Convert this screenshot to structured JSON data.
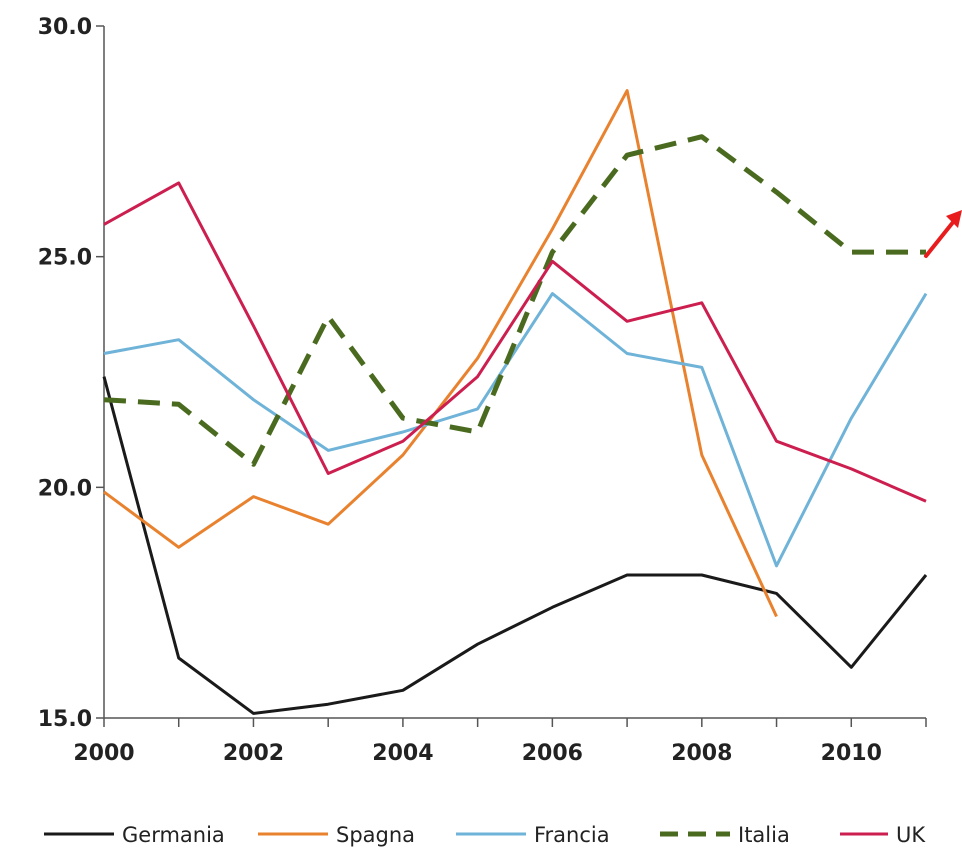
{
  "chart_data": {
    "type": "line",
    "title": "",
    "xlabel": "",
    "ylabel": "",
    "x": [
      2000,
      2001,
      2002,
      2003,
      2004,
      2005,
      2006,
      2007,
      2008,
      2009,
      2010,
      2011
    ],
    "xlim": [
      2000,
      2011
    ],
    "ylim": [
      15.0,
      30.0
    ],
    "x_ticks": [
      2000,
      2002,
      2004,
      2006,
      2008,
      2010
    ],
    "x_tick_labels": [
      "2000",
      "2002",
      "2004",
      "2006",
      "2008",
      "2010"
    ],
    "y_ticks": [
      15,
      20,
      25,
      30
    ],
    "y_tick_labels": [
      "15.0",
      "20.0",
      "25.0",
      "30.0"
    ],
    "grid": false,
    "legend_position": "bottom",
    "series": [
      {
        "name": "Germania",
        "color": "#1a1a1a",
        "dash": "solid",
        "values": [
          22.4,
          16.3,
          15.1,
          15.3,
          15.6,
          16.6,
          17.4,
          18.1,
          18.1,
          17.7,
          16.1,
          18.1
        ]
      },
      {
        "name": "Spagna",
        "color": "#e9822e",
        "dash": "solid",
        "values": [
          19.9,
          18.7,
          19.8,
          19.2,
          20.7,
          22.8,
          25.6,
          28.6,
          20.7,
          17.2,
          null,
          null
        ]
      },
      {
        "name": "Francia",
        "color": "#6fb3d8",
        "dash": "solid",
        "values": [
          22.9,
          23.2,
          21.9,
          20.8,
          21.2,
          21.7,
          24.2,
          22.9,
          22.6,
          18.3,
          21.5,
          24.2
        ]
      },
      {
        "name": "Italia",
        "color": "#4a6b1f",
        "dash": "dashed",
        "values": [
          21.9,
          21.8,
          20.5,
          23.7,
          21.5,
          21.2,
          25.1,
          27.2,
          27.6,
          26.4,
          25.1,
          25.1
        ]
      },
      {
        "name": "UK",
        "color": "#cc1f4f",
        "dash": "solid",
        "values": [
          25.7,
          26.6,
          23.5,
          20.3,
          21.0,
          22.4,
          24.9,
          23.6,
          24.0,
          21.0,
          20.4,
          19.7
        ]
      }
    ],
    "annotations": [
      {
        "type": "arrow",
        "color": "#e81c1c"
      }
    ]
  }
}
